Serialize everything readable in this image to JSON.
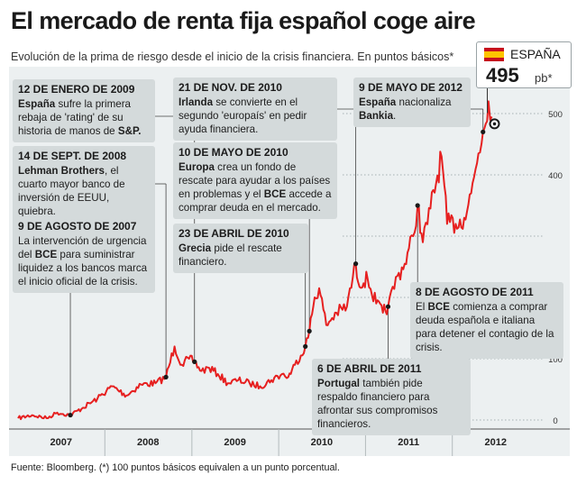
{
  "header": {
    "title": "El mercado de renta fija español coge aire",
    "subtitle": "Evolución de la prima de riesgo desde el inicio de la crisis financiera. En puntos básicos*"
  },
  "badge": {
    "country": "ESPAÑA",
    "value": "495",
    "unit": "pb*"
  },
  "footer": {
    "source": "Fuente: Bloomberg. (*) 100 puntos básicos equivalen a un punto porcentual."
  },
  "annotations": [
    {
      "date": "12 DE ENERO DE 2009",
      "parts": [
        [
          "b",
          "España"
        ],
        [
          "t",
          " sufre la primera rebaja de 'rating' de su historia de manos de "
        ],
        [
          "b",
          "S&P."
        ]
      ]
    },
    {
      "date": "14 DE SEPT. DE 2008",
      "parts": [
        [
          "b",
          "Lehman Brothers"
        ],
        [
          "t",
          ", el cuarto mayor banco de inversión de EEUU, quiebra."
        ]
      ]
    },
    {
      "date": "9 DE AGOSTO DE 2007",
      "parts": [
        [
          "t",
          "La intervención de urgencia del "
        ],
        [
          "b",
          "BCE"
        ],
        [
          "t",
          " para suministrar liquidez a los bancos marca el inicio oficial de la crisis."
        ]
      ]
    },
    {
      "date": "21 DE NOV. DE 2010",
      "parts": [
        [
          "b",
          "Irlanda"
        ],
        [
          "t",
          " se convierte en el segundo 'europaís' en pedir ayuda financiera."
        ]
      ]
    },
    {
      "date": "10 DE MAYO DE 2010",
      "parts": [
        [
          "b",
          "Europa"
        ],
        [
          "t",
          " crea un fondo de rescate para ayudar a los países en problemas y el "
        ],
        [
          "b",
          "BCE"
        ],
        [
          "t",
          " accede a comprar deuda en el mercado."
        ]
      ]
    },
    {
      "date": "23 DE ABRIL DE 2010",
      "parts": [
        [
          "b",
          "Grecia"
        ],
        [
          "t",
          " pide el rescate financiero."
        ]
      ]
    },
    {
      "date": "9 DE MAYO DE 2012",
      "parts": [
        [
          "b",
          "España"
        ],
        [
          "t",
          " nacionaliza "
        ],
        [
          "b",
          "Bankia"
        ],
        [
          "t",
          "."
        ]
      ]
    },
    {
      "date": "8 DE AGOSTO DE 2011",
      "parts": [
        [
          "t",
          "El "
        ],
        [
          "b",
          "BCE"
        ],
        [
          "t",
          " comienza a comprar deuda española e italiana para detener el contagio de la crisis."
        ]
      ]
    },
    {
      "date": "6 DE ABRIL DE 2011",
      "parts": [
        [
          "b",
          "Portugal"
        ],
        [
          "t",
          " también pide respaldo financiero para afrontar sus compromisos financieros."
        ]
      ]
    }
  ],
  "chart_data": {
    "type": "line",
    "title": "El mercado de renta fija español coge aire",
    "ylabel": "",
    "xlabel": "",
    "ylim": [
      0,
      550
    ],
    "yticks": [
      0,
      100,
      400,
      500
    ],
    "ytick_labels": [
      "0",
      "100",
      "400",
      "500"
    ],
    "xlim": [
      "2007-01-01",
      "2012-12-31"
    ],
    "xtick_labels": [
      "2007",
      "2008",
      "2009",
      "2010",
      "2011",
      "2012"
    ],
    "grid": "horizontal dotted",
    "line_color": "#e62020",
    "series": [
      {
        "x": [
          "2007-01-01",
          "2007-03-01",
          "2007-05-01",
          "2007-06-15",
          "2007-08-09",
          "2007-10-01",
          "2007-12-01",
          "2008-02-01",
          "2008-04-01",
          "2008-06-01",
          "2008-08-01",
          "2008-09-14",
          "2008-10-20",
          "2008-11-20",
          "2008-12-20",
          "2009-01-12",
          "2009-02-10",
          "2009-03-15",
          "2009-04-20",
          "2009-06-01",
          "2009-07-15",
          "2009-09-01",
          "2009-10-15",
          "2009-12-01",
          "2010-01-15",
          "2010-02-10",
          "2010-03-10",
          "2010-04-23",
          "2010-05-10",
          "2010-06-01",
          "2010-06-20",
          "2010-07-20",
          "2010-09-01",
          "2010-10-15",
          "2010-11-21",
          "2010-12-01",
          "2011-01-10",
          "2011-02-15",
          "2011-03-15",
          "2011-04-06",
          "2011-05-15",
          "2011-06-15",
          "2011-07-20",
          "2011-08-08",
          "2011-08-30",
          "2011-10-01",
          "2011-11-17",
          "2011-12-10",
          "2012-01-15",
          "2012-02-20",
          "2012-03-20",
          "2012-04-20",
          "2012-05-09",
          "2012-06-01",
          "2012-06-15"
        ],
        "y": [
          3,
          8,
          3,
          12,
          8,
          20,
          35,
          55,
          40,
          58,
          60,
          70,
          120,
          90,
          100,
          95,
          80,
          85,
          75,
          60,
          65,
          60,
          55,
          65,
          75,
          70,
          90,
          120,
          145,
          200,
          215,
          155,
          175,
          185,
          255,
          225,
          230,
          190,
          175,
          185,
          235,
          255,
          300,
          350,
          290,
          345,
          430,
          320,
          320,
          330,
          370,
          435,
          470,
          520,
          495
        ]
      }
    ],
    "annotated_points": [
      "2007-08-09",
      "2008-09-14",
      "2009-01-12",
      "2010-04-23",
      "2010-05-10",
      "2010-11-21",
      "2011-04-06",
      "2011-08-08",
      "2012-05-09"
    ],
    "current_value": 495
  }
}
